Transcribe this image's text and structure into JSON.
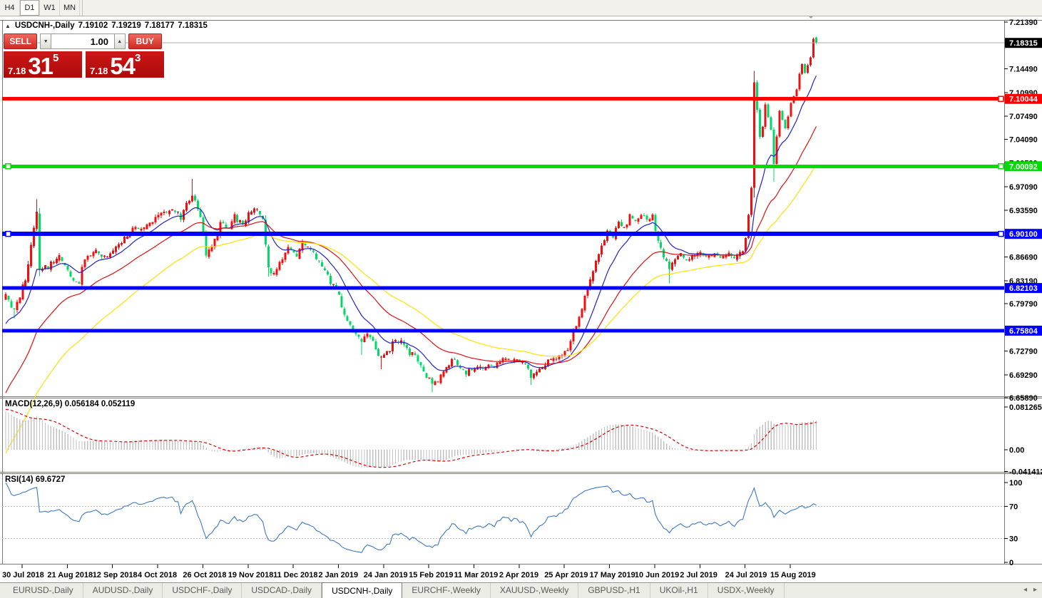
{
  "toolbar": {
    "timeframes": [
      "H4",
      "D1",
      "W1",
      "MN"
    ],
    "active": "D1"
  },
  "chart": {
    "collapse_icon": "▲",
    "title": "USDCNH-,Daily",
    "ohlc": {
      "open": "7.19102",
      "high": "7.19219",
      "low": "7.18177",
      "close": "7.18315"
    }
  },
  "trade_panel": {
    "sell_label": "SELL",
    "buy_label": "BUY",
    "volume": "1.00",
    "spin_down_icon": "▼",
    "spin_up_icon": "▲",
    "sell_price": {
      "small": "7.18",
      "big": "31",
      "sup": "5"
    },
    "buy_price": {
      "small": "7.18",
      "big": "54",
      "sup": "3"
    }
  },
  "tabs": {
    "items": [
      "EURUSD-,Daily",
      "AUDUSD-,Daily",
      "USDCHF-,Daily",
      "USDCAD-,Daily",
      "USDCNH-,Daily",
      "EURCHF-,Weekly",
      "XAUUSD-,Weekly",
      "GBPUSD-,H1",
      "UKOil-,H1",
      "USDX-,Weekly"
    ],
    "active_index": 4,
    "scroll_left_icon": "◂",
    "scroll_right_icon": "▸"
  },
  "chart_data": {
    "type": "candlestick",
    "symbol": "USDCNH",
    "timeframe": "Daily",
    "current_price": 7.18315,
    "current_price_label": "7.18315",
    "price_axis": [
      "7.21390",
      "7.14490",
      "7.10990",
      "7.07490",
      "7.04090",
      "7.00590",
      "6.97090",
      "6.93590",
      "6.86690",
      "6.83190",
      "6.79790",
      "6.72790",
      "6.69290",
      "6.65890"
    ],
    "levels": [
      {
        "value": "7.10044",
        "price": 7.10044,
        "color": "#FF0000",
        "width": 5,
        "handles": [
          "right"
        ]
      },
      {
        "value": "7.00092",
        "price": 7.00092,
        "color": "#00DD00",
        "width": 5,
        "handles": [
          "left",
          "right"
        ]
      },
      {
        "value": "6.90100",
        "price": 6.901,
        "color": "#0000FF",
        "width": 6,
        "handles": [
          "left",
          "right"
        ]
      },
      {
        "value": "6.82103",
        "price": 6.82103,
        "color": "#0000FF",
        "width": 5,
        "handles": []
      },
      {
        "value": "6.75804",
        "price": 6.75804,
        "color": "#0000FF",
        "width": 5,
        "handles": []
      }
    ],
    "x_labels": [
      "30 Jul 2018",
      "21 Aug 2018",
      "12 Sep 2018",
      "4 Oct 2018",
      "26 Oct 2018",
      "19 Nov 2018",
      "11 Dec 2018",
      "2 Jan 2019",
      "24 Jan 2019",
      "15 Feb 2019",
      "11 Mar 2019",
      "2 Apr 2019",
      "25 Apr 2019",
      "17 May 2019",
      "10 Jun 2019",
      "2 Jul 2019",
      "24 Jul 2019",
      "15 Aug 2019"
    ],
    "ma_lines": [
      {
        "name": "fast",
        "period": 12,
        "color": "#2222CC"
      },
      {
        "name": "medium",
        "period": 32,
        "color": "#DD1111"
      },
      {
        "name": "slow",
        "period": 55,
        "color": "#FFE100"
      }
    ],
    "macd": {
      "label_full": "MACD(12,26,9) 0.056184 0.052119",
      "params": "12,26,9",
      "value_main": "0.056184",
      "value_signal": "0.052119",
      "axis": [
        "0.081265",
        "0.00",
        "-0.041412"
      ]
    },
    "rsi": {
      "label_full": "RSI(14) 69.6727",
      "period": "14",
      "value": "69.6727",
      "axis": [
        "100",
        "70",
        "30",
        "0"
      ],
      "levels": [
        70,
        30
      ]
    },
    "colors": {
      "bull": "#EE1010",
      "bear": "#00D966",
      "macd_hist": "#C2C2C2",
      "macd_signal": "#DD0000",
      "rsi": "#3C78C8",
      "price_line": "#A8A8A8"
    },
    "warmup_anchors": [
      [
        -70,
        6.25
      ],
      [
        -45,
        6.33
      ],
      [
        -30,
        6.48
      ],
      [
        -15,
        6.68
      ],
      [
        -5,
        6.79
      ]
    ],
    "close_anchors": [
      [
        0,
        6.815
      ],
      [
        3,
        6.79
      ],
      [
        7,
        6.84
      ],
      [
        11,
        6.935
      ],
      [
        12,
        6.85
      ],
      [
        16,
        6.86
      ],
      [
        19,
        6.875
      ],
      [
        23,
        6.84
      ],
      [
        26,
        6.835
      ],
      [
        28,
        6.87
      ],
      [
        32,
        6.88
      ],
      [
        36,
        6.87
      ],
      [
        40,
        6.89
      ],
      [
        43,
        6.905
      ],
      [
        47,
        6.915
      ],
      [
        51,
        6.92
      ],
      [
        55,
        6.935
      ],
      [
        59,
        6.945
      ],
      [
        62,
        6.93
      ],
      [
        66,
        6.965
      ],
      [
        69,
        6.93
      ],
      [
        71,
        6.875
      ],
      [
        74,
        6.895
      ],
      [
        76,
        6.92
      ],
      [
        79,
        6.915
      ],
      [
        81,
        6.93
      ],
      [
        84,
        6.92
      ],
      [
        86,
        6.935
      ],
      [
        89,
        6.945
      ],
      [
        91,
        6.93
      ],
      [
        93,
        6.855
      ],
      [
        95,
        6.845
      ],
      [
        98,
        6.87
      ],
      [
        100,
        6.885
      ],
      [
        103,
        6.875
      ],
      [
        105,
        6.895
      ],
      [
        108,
        6.885
      ],
      [
        110,
        6.87
      ],
      [
        113,
        6.855
      ],
      [
        115,
        6.835
      ],
      [
        118,
        6.815
      ],
      [
        120,
        6.785
      ],
      [
        123,
        6.76
      ],
      [
        126,
        6.745
      ],
      [
        128,
        6.76
      ],
      [
        131,
        6.735
      ],
      [
        133,
        6.72
      ],
      [
        136,
        6.735
      ],
      [
        138,
        6.75
      ],
      [
        141,
        6.745
      ],
      [
        143,
        6.73
      ],
      [
        146,
        6.72
      ],
      [
        148,
        6.7
      ],
      [
        151,
        6.685
      ],
      [
        153,
        6.69
      ],
      [
        156,
        6.705
      ],
      [
        158,
        6.72
      ],
      [
        161,
        6.71
      ],
      [
        163,
        6.7
      ],
      [
        166,
        6.71
      ],
      [
        168,
        6.705
      ],
      [
        171,
        6.715
      ],
      [
        173,
        6.71
      ],
      [
        176,
        6.72
      ],
      [
        179,
        6.715
      ],
      [
        181,
        6.72
      ],
      [
        184,
        6.71
      ],
      [
        186,
        6.695
      ],
      [
        189,
        6.705
      ],
      [
        191,
        6.715
      ],
      [
        194,
        6.72
      ],
      [
        196,
        6.725
      ],
      [
        199,
        6.73
      ],
      [
        201,
        6.76
      ],
      [
        203,
        6.785
      ],
      [
        205,
        6.81
      ],
      [
        207,
        6.835
      ],
      [
        209,
        6.862
      ],
      [
        211,
        6.888
      ],
      [
        213,
        6.91
      ],
      [
        215,
        6.903
      ],
      [
        217,
        6.923
      ],
      [
        219,
        6.912
      ],
      [
        221,
        6.93
      ],
      [
        223,
        6.922
      ],
      [
        225,
        6.935
      ],
      [
        227,
        6.925
      ],
      [
        229,
        6.93
      ],
      [
        231,
        6.895
      ],
      [
        233,
        6.87
      ],
      [
        235,
        6.853
      ],
      [
        237,
        6.865
      ],
      [
        239,
        6.875
      ],
      [
        241,
        6.862
      ],
      [
        243,
        6.87
      ],
      [
        246,
        6.875
      ],
      [
        248,
        6.868
      ],
      [
        251,
        6.875
      ],
      [
        253,
        6.868
      ],
      [
        256,
        6.874
      ],
      [
        258,
        6.868
      ],
      [
        261,
        6.878
      ],
      [
        262,
        6.895
      ],
      [
        263,
        6.93
      ],
      [
        264,
        6.97
      ],
      [
        265,
        7.125
      ],
      [
        267,
        7.045
      ],
      [
        268,
        7.06
      ],
      [
        269,
        7.093
      ],
      [
        271,
        7.055
      ],
      [
        272,
        7.005
      ],
      [
        273,
        7.045
      ],
      [
        274,
        7.083
      ],
      [
        276,
        7.058
      ],
      [
        277,
        7.075
      ],
      [
        278,
        7.095
      ],
      [
        280,
        7.115
      ],
      [
        281,
        7.138
      ],
      [
        282,
        7.152
      ],
      [
        283,
        7.14
      ],
      [
        285,
        7.162
      ],
      [
        286,
        7.19
      ],
      [
        287,
        7.18315
      ]
    ],
    "wick_overrides": {
      "3": {
        "l": 6.776
      },
      "11": {
        "h": 6.952
      },
      "66": {
        "h": 6.982
      },
      "93": {
        "l": 6.838
      },
      "126": {
        "l": 6.722
      },
      "133": {
        "l": 6.701
      },
      "151": {
        "l": 6.667
      },
      "186": {
        "l": 6.678
      },
      "235": {
        "l": 6.828
      },
      "265": {
        "h": 7.142,
        "l": 6.955
      },
      "272": {
        "l": 6.978
      }
    },
    "last_candle": {
      "o": 7.19102,
      "h": 7.19219,
      "l": 7.18177,
      "c": 7.18315
    }
  }
}
